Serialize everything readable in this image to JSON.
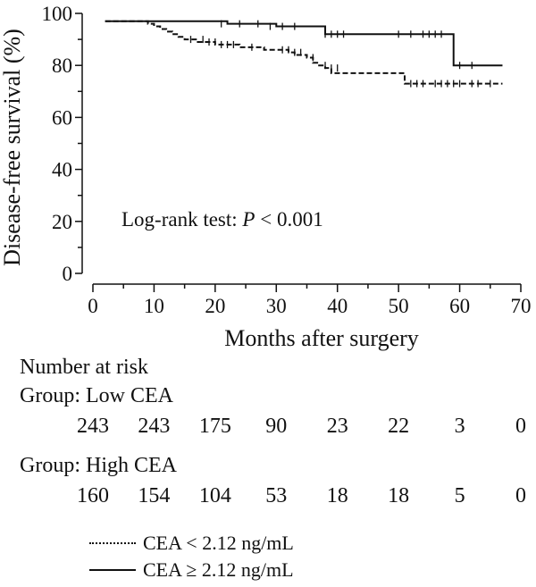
{
  "chart_data": {
    "type": "line",
    "subtype": "kaplan-meier",
    "ylabel": "Disease-free survival (%)",
    "xlabel": "Months after surgery",
    "annotation": "Log-rank test: P < 0.001",
    "annotation_parts": [
      "Log-rank test: ",
      "P",
      " < 0.001"
    ],
    "xlim": [
      0,
      70
    ],
    "ylim": [
      0,
      100
    ],
    "xticks": [
      0,
      10,
      20,
      30,
      40,
      50,
      60,
      70
    ],
    "yticks": [
      0,
      20,
      40,
      60,
      80,
      100
    ],
    "grid": false,
    "legend_position": "bottom",
    "series": [
      {
        "name": "CEA < 2.12 ng/mL",
        "group": "Low CEA",
        "style": "dashed",
        "x": [
          2,
          7,
          9,
          10,
          11,
          12,
          13,
          14,
          15,
          17,
          20,
          24,
          28,
          30,
          32,
          33,
          35,
          36,
          37,
          38,
          39,
          41,
          51,
          58,
          67
        ],
        "y": [
          97,
          97,
          96,
          95,
          94,
          93,
          92,
          91,
          90,
          89,
          88,
          87,
          86,
          86,
          85,
          84,
          83,
          81,
          80,
          79,
          77,
          77,
          73,
          73,
          73
        ],
        "censored_x": [
          16,
          18,
          19,
          20,
          21,
          22,
          23,
          26,
          31,
          32,
          33,
          34,
          36,
          38,
          39,
          40,
          52,
          53,
          54,
          56,
          57,
          58,
          59,
          60,
          62,
          63,
          65
        ],
        "censored_y": [
          90,
          90,
          89,
          89,
          88,
          88,
          88,
          87,
          86,
          86,
          85,
          85,
          83,
          80,
          79,
          79,
          73,
          73,
          73,
          73,
          73,
          73,
          73,
          73,
          73,
          73,
          73
        ]
      },
      {
        "name": "CEA ≥ 2.12 ng/mL",
        "group": "High CEA",
        "style": "solid",
        "x": [
          2,
          10,
          22,
          30,
          38,
          59,
          67
        ],
        "y": [
          97,
          97,
          96,
          95,
          92,
          80,
          80
        ],
        "censored_x": [
          21,
          24,
          27,
          29,
          31,
          33,
          38,
          39,
          40,
          41,
          50,
          52,
          54,
          55,
          56,
          57,
          60,
          62
        ],
        "censored_y": [
          96,
          96,
          96,
          95,
          95,
          95,
          92,
          92,
          92,
          92,
          92,
          92,
          92,
          92,
          92,
          92,
          80,
          80
        ]
      }
    ],
    "number_at_risk": {
      "title": "Number at risk",
      "times": [
        0,
        10,
        20,
        30,
        40,
        50,
        60,
        70
      ],
      "groups": [
        {
          "label": "Group: Low CEA",
          "values": [
            243,
            243,
            175,
            90,
            23,
            22,
            3,
            0
          ]
        },
        {
          "label": "Group: High CEA",
          "values": [
            160,
            154,
            104,
            53,
            18,
            18,
            5,
            0
          ]
        }
      ]
    }
  }
}
